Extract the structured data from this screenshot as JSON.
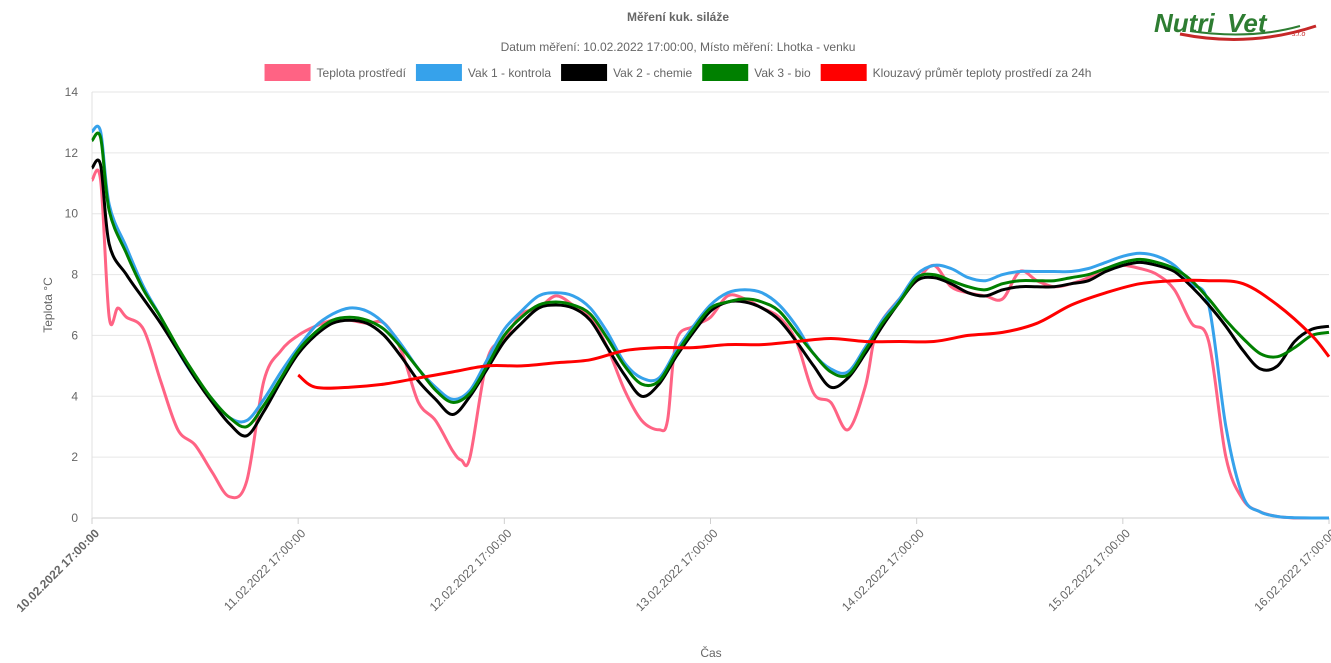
{
  "logo": {
    "brand_a": "Nutri",
    "brand_b": "Vet",
    "suffix": "s.r.o"
  },
  "chart_data": {
    "type": "line",
    "title": "Měření kuk. siláže",
    "subtitle": "Datum měření: 10.02.2022 17:00:00, Místo měření: Lhotka - venku",
    "xlabel": "Čas",
    "ylabel": "Teplota °C",
    "ylim": [
      0,
      14
    ],
    "yticks": [
      0,
      2,
      4,
      6,
      8,
      10,
      12,
      14
    ],
    "xlim": [
      0,
      144
    ],
    "xtick_values": [
      0,
      24,
      48,
      72,
      96,
      120,
      144
    ],
    "xtick_labels": [
      "10.02.2022 17:00:00",
      "11.02.2022 17:00:00",
      "12.02.2022 17:00:00",
      "13.02.2022 17:00:00",
      "14.02.2022 17:00:00",
      "15.02.2022 17:00:00",
      "16.02.2022 17:00:00"
    ],
    "x_unit_note": "hours from 10.02.2022 17:00:00",
    "grid": true,
    "legend_position": "top",
    "series": [
      {
        "name": "Teplota prostředí",
        "color": "#ff6384",
        "x": [
          0,
          1,
          2,
          3,
          4,
          6,
          8,
          10,
          12,
          14,
          16,
          18,
          20,
          22,
          24,
          26,
          28,
          30,
          32,
          34,
          36,
          38,
          40,
          42,
          43,
          44,
          46,
          48,
          50,
          52,
          54,
          56,
          58,
          60,
          62,
          64,
          66,
          67,
          68,
          70,
          72,
          74,
          76,
          78,
          80,
          82,
          84,
          86,
          88,
          90,
          91,
          92,
          94,
          96,
          98,
          100,
          102,
          104,
          106,
          108,
          110,
          112,
          114,
          116,
          118,
          120,
          122,
          124,
          126,
          128,
          130,
          132,
          134,
          136,
          138,
          139,
          140,
          141,
          142,
          143,
          144
        ],
        "values": [
          11.1,
          11.1,
          6.6,
          6.9,
          6.6,
          6.2,
          4.5,
          2.9,
          2.4,
          1.5,
          0.7,
          1.2,
          4.5,
          5.5,
          6.0,
          6.3,
          6.5,
          6.5,
          6.4,
          6.4,
          5.5,
          3.8,
          3.2,
          2.2,
          1.9,
          2.0,
          5.2,
          5.9,
          6.7,
          6.9,
          7.3,
          7.0,
          6.6,
          5.6,
          4.2,
          3.2,
          2.9,
          3.2,
          5.8,
          6.3,
          6.6,
          7.3,
          7.2,
          6.9,
          6.6,
          5.8,
          4.1,
          3.8,
          2.9,
          4.3,
          5.8,
          6.5,
          7.2,
          7.8,
          8.3,
          7.6,
          7.4,
          7.3,
          7.2,
          8.1,
          7.8,
          7.6,
          7.7,
          7.9,
          8.2,
          8.3,
          8.2,
          8.0,
          7.5,
          6.4,
          5.8,
          2.0,
          0.6,
          0.2,
          0.05,
          0.02,
          0.0,
          0.0,
          0.0,
          0.0,
          0.0
        ]
      },
      {
        "name": "Vak 1 - kontrola",
        "color": "#36a2eb",
        "x": [
          0,
          1,
          2,
          4,
          6,
          8,
          10,
          12,
          14,
          16,
          18,
          20,
          22,
          24,
          26,
          28,
          30,
          32,
          34,
          36,
          38,
          40,
          42,
          44,
          46,
          48,
          50,
          52,
          54,
          56,
          58,
          60,
          62,
          64,
          66,
          68,
          70,
          72,
          74,
          76,
          78,
          80,
          82,
          84,
          86,
          88,
          90,
          92,
          94,
          96,
          98,
          100,
          102,
          104,
          106,
          108,
          110,
          112,
          114,
          116,
          118,
          120,
          122,
          124,
          126,
          128,
          130,
          132,
          134,
          136,
          138,
          139,
          140,
          142,
          144
        ],
        "values": [
          12.7,
          12.7,
          10.3,
          8.9,
          7.6,
          6.6,
          5.5,
          4.6,
          3.9,
          3.3,
          3.2,
          3.9,
          4.8,
          5.6,
          6.3,
          6.7,
          6.9,
          6.8,
          6.4,
          5.7,
          4.9,
          4.3,
          3.9,
          4.2,
          5.2,
          6.2,
          6.8,
          7.3,
          7.4,
          7.3,
          6.9,
          6.1,
          5.1,
          4.6,
          4.6,
          5.5,
          6.3,
          7.0,
          7.4,
          7.5,
          7.4,
          7.0,
          6.3,
          5.4,
          4.9,
          4.8,
          5.6,
          6.5,
          7.2,
          8.0,
          8.3,
          8.2,
          7.9,
          7.8,
          8.0,
          8.1,
          8.1,
          8.1,
          8.1,
          8.2,
          8.4,
          8.6,
          8.7,
          8.6,
          8.3,
          7.7,
          7.0,
          3.0,
          0.7,
          0.2,
          0.05,
          0.02,
          0.01,
          0.0,
          0.0
        ]
      },
      {
        "name": "Vak 2 - chemie",
        "color": "#000000",
        "x": [
          0,
          1,
          2,
          4,
          6,
          8,
          10,
          12,
          14,
          16,
          18,
          20,
          22,
          24,
          26,
          28,
          30,
          32,
          34,
          36,
          38,
          40,
          42,
          44,
          46,
          48,
          50,
          52,
          54,
          56,
          58,
          60,
          62,
          64,
          66,
          68,
          70,
          72,
          74,
          76,
          78,
          80,
          82,
          84,
          86,
          88,
          90,
          92,
          94,
          96,
          98,
          100,
          102,
          104,
          106,
          108,
          110,
          112,
          114,
          116,
          118,
          120,
          122,
          124,
          126,
          128,
          130,
          132,
          134,
          136,
          138,
          140,
          142,
          144
        ],
        "values": [
          11.5,
          11.6,
          9.0,
          8.0,
          7.2,
          6.4,
          5.5,
          4.6,
          3.8,
          3.1,
          2.7,
          3.5,
          4.5,
          5.4,
          6.0,
          6.4,
          6.5,
          6.4,
          6.0,
          5.3,
          4.5,
          3.9,
          3.4,
          4.0,
          4.9,
          5.8,
          6.4,
          6.9,
          7.0,
          6.9,
          6.5,
          5.6,
          4.7,
          4.0,
          4.4,
          5.3,
          6.1,
          6.8,
          7.1,
          7.1,
          6.9,
          6.5,
          5.8,
          5.0,
          4.3,
          4.6,
          5.4,
          6.3,
          7.1,
          7.8,
          7.9,
          7.7,
          7.4,
          7.3,
          7.5,
          7.6,
          7.6,
          7.6,
          7.7,
          7.8,
          8.1,
          8.3,
          8.4,
          8.3,
          8.1,
          7.6,
          7.0,
          6.3,
          5.5,
          4.9,
          5.0,
          5.8,
          6.2,
          6.3
        ]
      },
      {
        "name": "Vak 3 - bio",
        "color": "#008000",
        "x": [
          0,
          1,
          2,
          4,
          6,
          8,
          10,
          12,
          14,
          16,
          18,
          20,
          22,
          24,
          26,
          28,
          30,
          32,
          34,
          36,
          38,
          40,
          42,
          44,
          46,
          48,
          50,
          52,
          54,
          56,
          58,
          60,
          62,
          64,
          66,
          68,
          70,
          72,
          74,
          76,
          78,
          80,
          82,
          84,
          86,
          88,
          90,
          92,
          94,
          96,
          98,
          100,
          102,
          104,
          106,
          108,
          110,
          112,
          114,
          116,
          118,
          120,
          122,
          124,
          126,
          128,
          130,
          132,
          134,
          136,
          138,
          140,
          142,
          144
        ],
        "values": [
          12.4,
          12.5,
          10.1,
          8.7,
          7.5,
          6.6,
          5.6,
          4.7,
          3.9,
          3.3,
          3.0,
          3.7,
          4.6,
          5.5,
          6.1,
          6.5,
          6.6,
          6.5,
          6.2,
          5.6,
          4.9,
          4.2,
          3.8,
          4.1,
          5.0,
          6.0,
          6.6,
          7.0,
          7.1,
          7.0,
          6.7,
          5.9,
          5.0,
          4.4,
          4.5,
          5.4,
          6.2,
          6.9,
          7.1,
          7.2,
          7.1,
          6.8,
          6.1,
          5.4,
          4.8,
          4.7,
          5.5,
          6.4,
          7.1,
          7.9,
          8.0,
          7.8,
          7.6,
          7.5,
          7.7,
          7.8,
          7.8,
          7.8,
          7.9,
          8.0,
          8.2,
          8.4,
          8.5,
          8.4,
          8.2,
          7.8,
          7.2,
          6.5,
          5.9,
          5.4,
          5.3,
          5.6,
          6.0,
          6.1
        ]
      },
      {
        "name": "Klouzavý průměr teploty prostředí za 24h",
        "color": "#ff0000",
        "x": [
          24,
          26,
          30,
          34,
          38,
          42,
          46,
          50,
          54,
          58,
          62,
          66,
          70,
          74,
          78,
          82,
          86,
          90,
          94,
          98,
          102,
          106,
          110,
          114,
          118,
          122,
          126,
          130,
          134,
          138,
          142,
          144
        ],
        "values": [
          4.7,
          4.3,
          4.3,
          4.4,
          4.6,
          4.8,
          5.0,
          5.0,
          5.1,
          5.2,
          5.5,
          5.6,
          5.6,
          5.7,
          5.7,
          5.8,
          5.9,
          5.8,
          5.8,
          5.8,
          6.0,
          6.1,
          6.4,
          7.0,
          7.4,
          7.7,
          7.8,
          7.8,
          7.7,
          7.0,
          6.0,
          5.3
        ]
      }
    ]
  }
}
